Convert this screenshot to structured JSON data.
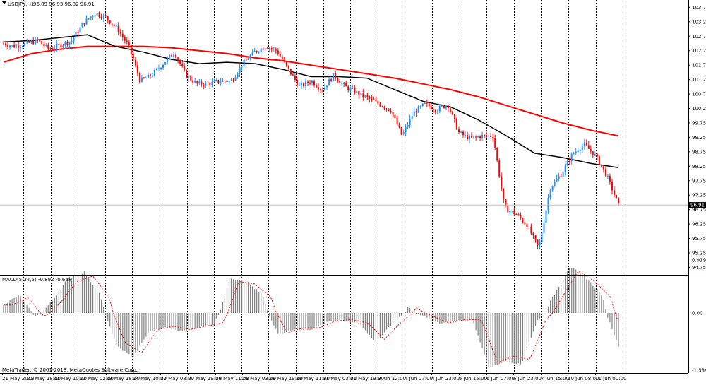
{
  "header": {
    "symbol_label": "USDJPY,H1",
    "ohlc_label": "96.89 96.93 96.82 96.91"
  },
  "macd_panel": {
    "label": "MACD(5,34,5) -0.892 -0.658",
    "tick_labels": [
      "0.919",
      "0.00",
      "-1.534"
    ]
  },
  "copyright": "MetaTrader, © 2001-2013, MetaQuotes Software Corp.",
  "price_axis": {
    "tick_labels": [
      "103.75",
      "103.25",
      "102.75",
      "102.25",
      "101.75",
      "101.25",
      "100.75",
      "100.25",
      "99.75",
      "99.25",
      "98.75",
      "98.25",
      "97.75",
      "97.25",
      "96.75",
      "96.25",
      "95.75",
      "95.25",
      "94.75"
    ],
    "current_price": "96.91"
  },
  "time_axis": {
    "labels": [
      "21 May 2013",
      "21 May 18:00",
      "22 May 10:00",
      "23 May 02:00",
      "23 May 18:00",
      "24 May 10:00",
      "27 May 03:00",
      "27 May 19:00",
      "28 May 11:00",
      "29 May 03:00",
      "29 May 19:00",
      "30 May 11:00",
      "31 May 03:00",
      "31 May 19:00",
      "3 Jun 12:00",
      "4 Jun 07:00",
      "4 Jun 23:00",
      "5 Jun 15:00",
      "6 Jun 07:00",
      "6 Jun 23:00",
      "7 Jun 15:00",
      "10 Jun 08:00",
      "11 Jun 00:00"
    ]
  },
  "colors": {
    "bull": "#1e90ff",
    "bear": "#ff0000",
    "ma_slow": "#ff0000",
    "ma_fast": "#000000",
    "macd_hist": "#808080",
    "macd_signal": "#ff0000",
    "grid": "#000000",
    "current_line": "#c0c0c0"
  },
  "chart_data": [
    {
      "type": "candlestick",
      "symbol": "USDJPY",
      "timeframe": "H1",
      "ylim": [
        94.75,
        104.0
      ],
      "anchor_closes": [
        102.5,
        102.4,
        102.5,
        102.6,
        102.3,
        102.45,
        102.6,
        103.2,
        103.55,
        103.4,
        103.0,
        102.4,
        101.2,
        101.4,
        101.8,
        102.2,
        101.4,
        101.1,
        101.1,
        101.2,
        101.2,
        101.8,
        102.2,
        102.4,
        102.25,
        101.6,
        101.0,
        101.2,
        100.9,
        101.4,
        101.0,
        100.8,
        100.6,
        100.4,
        100.2,
        99.3,
        100.1,
        100.4,
        100.2,
        100.4,
        99.4,
        99.2,
        99.3,
        99.3,
        96.8,
        96.6,
        96.2,
        95.4,
        97.5,
        98.0,
        98.7,
        99.0,
        98.6,
        97.9,
        96.9
      ],
      "series": [
        {
          "name": "",
          "description": "slow moving average (red)",
          "values": [
            101.85,
            102.15,
            102.3,
            102.4,
            102.4,
            102.4,
            102.35,
            102.25,
            102.15,
            102.0,
            101.9,
            101.75,
            101.6,
            101.45,
            101.3,
            101.1,
            100.9,
            100.65,
            100.35,
            100.05,
            99.75,
            99.5,
            99.3
          ]
        },
        {
          "name": "",
          "description": "fast moving average (black)",
          "values": [
            102.55,
            102.6,
            102.7,
            102.8,
            102.4,
            102.2,
            101.95,
            101.8,
            101.85,
            101.8,
            101.6,
            101.35,
            101.35,
            101.3,
            100.9,
            100.5,
            100.3,
            99.85,
            99.3,
            98.7,
            98.55,
            98.35,
            98.2
          ]
        }
      ],
      "current_price": 96.91
    },
    {
      "type": "bar",
      "title": "MACD(5,34,5)",
      "ylim": [
        -1.534,
        0.919
      ],
      "values_anchor": [
        0.15,
        0.3,
        -0.1,
        0.2,
        0.6,
        0.7,
        0.3,
        -0.9,
        -1.2,
        -0.5,
        -0.4,
        -0.5,
        -0.4,
        -0.3,
        0.6,
        0.55,
        0.3,
        -0.6,
        -0.45,
        -0.45,
        -0.25,
        -0.2,
        -0.3,
        -0.8,
        -0.3,
        0.1,
        -0.1,
        -0.3,
        -0.2,
        -0.2,
        -1.5,
        -1.3,
        -1.4,
        -0.2,
        0.3,
        0.8,
        0.6,
        0.3,
        -0.9
      ],
      "signal_last": -0.658,
      "macd_last": -0.892
    }
  ]
}
